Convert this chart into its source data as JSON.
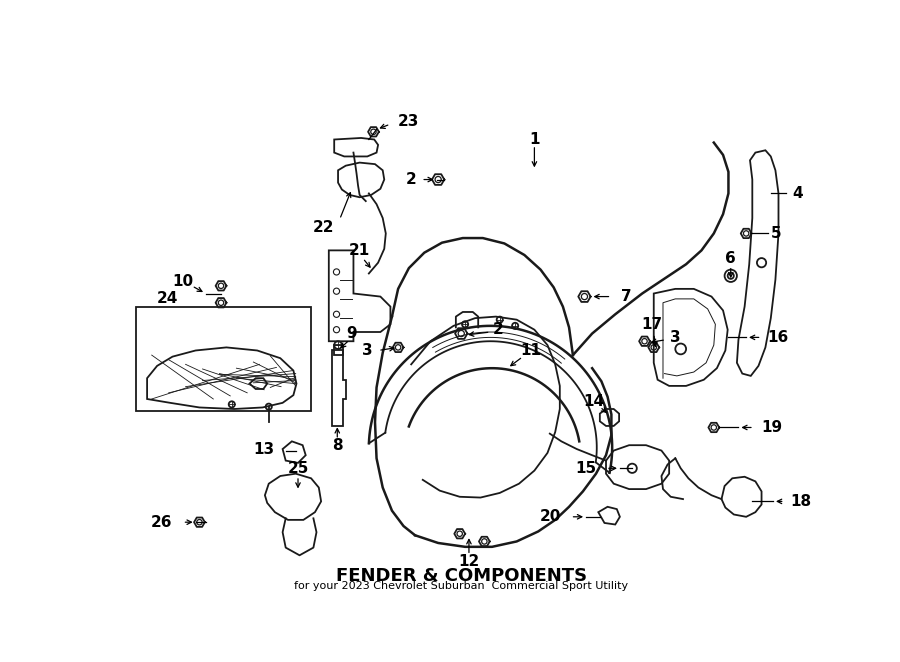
{
  "title": "FENDER & COMPONENTS",
  "subtitle": "for your 2023 Chevrolet Suburban  Commercial Sport Utility",
  "bg_color": "#ffffff",
  "line_color": "#1a1a1a",
  "lw": 1.3,
  "bold_lw": 1.8,
  "label_fs": 11,
  "arrow_lw": 0.9
}
